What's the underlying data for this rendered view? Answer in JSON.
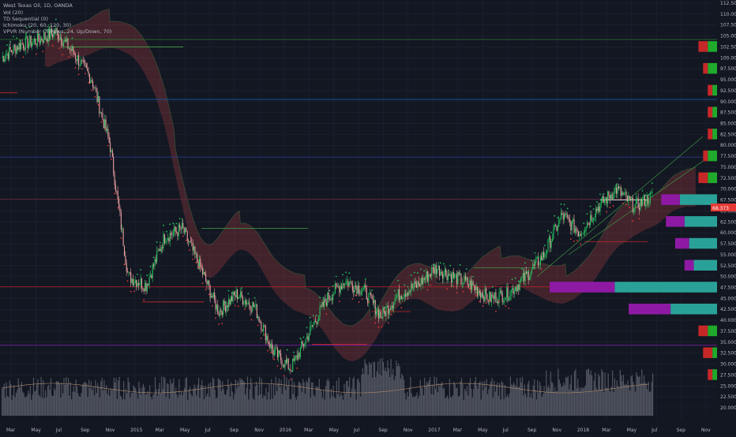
{
  "legend": {
    "title": "West Texas Oil, 1D, OANDA",
    "indicators": [
      "Vol (20)",
      "TD Sequential (0)",
      "Ichimoku (20, 60, 120, 30)",
      "VPVR (Number Of Rows, 24, Up/Down, 70)"
    ]
  },
  "colors": {
    "background": "#131722",
    "grid": "#1f2433",
    "up": "#26a69a",
    "down": "#ef5350",
    "candle_body": "#e8a0a0",
    "td_green": "#22c55e",
    "td_red": "#e53935",
    "volume": "#6b6f7a",
    "vpvr_up": "#2aa198",
    "vpvr_down": "#8e1aa3",
    "vpvr_upper_green": "#1faa2b",
    "vpvr_upper_red": "#c62828",
    "last_price_bg": "#e53935"
  },
  "price_axis": {
    "labels": [
      "112.500",
      "110.000",
      "107.500",
      "105.000",
      "102.500",
      "100.000",
      "97.500",
      "95.000",
      "92.500",
      "90.000",
      "87.500",
      "85.000",
      "82.500",
      "80.000",
      "77.500",
      "75.000",
      "72.500",
      "70.000",
      "67.500",
      "65.000",
      "62.500",
      "60.000",
      "57.500",
      "55.000",
      "52.500",
      "50.000",
      "47.500",
      "45.000",
      "42.500",
      "40.000",
      "37.500",
      "35.000",
      "32.500",
      "30.000",
      "27.500",
      "25.000",
      "22.500",
      "20.000"
    ],
    "last_price": "68.373"
  },
  "time_axis": {
    "labels": [
      "Mar",
      "May",
      "Jul",
      "Sep",
      "Nov",
      "2015",
      "Mar",
      "May",
      "Jul",
      "Sep",
      "Nov",
      "2016",
      "Mar",
      "May",
      "Jul",
      "Sep",
      "Nov",
      "2017",
      "Mar",
      "May",
      "Jul",
      "Sep",
      "Nov",
      "2018",
      "Mar",
      "May",
      "Jul",
      "Sep",
      "Nov"
    ]
  },
  "chart_data": {
    "type": "line",
    "title": "West Texas Oil, 1D, OANDA",
    "x": [
      "2014-02",
      "2014-03",
      "2014-05",
      "2014-07",
      "2014-08",
      "2014-09",
      "2014-11",
      "2015-01",
      "2015-03",
      "2015-05",
      "2015-06",
      "2015-07",
      "2015-08",
      "2015-09",
      "2015-11",
      "2016-01",
      "2016-02",
      "2016-03",
      "2016-05",
      "2016-06",
      "2016-07",
      "2016-08",
      "2016-09",
      "2016-11",
      "2017-01",
      "2017-03",
      "2017-05",
      "2017-06",
      "2017-07",
      "2017-09",
      "2017-11",
      "2018-01",
      "2018-03",
      "2018-04",
      "2018-05",
      "2018-06",
      "2018-07"
    ],
    "series": [
      {
        "values": [
          100,
          103,
          104,
          106,
          101,
          95,
          80,
          50,
          48,
          59,
          61,
          52,
          42,
          46,
          43,
          33,
          29,
          37,
          45,
          49,
          47,
          41,
          46,
          48,
          52,
          50,
          48,
          45,
          46,
          50,
          55,
          64,
          60,
          66,
          70,
          66,
          68.4
        ]
      }
    ],
    "ylim": [
      20,
      112.5
    ],
    "volume_profile": {
      "price_rows": [
        102.5,
        97.5,
        92.5,
        87.5,
        82.5,
        77.5,
        72.5,
        67.5,
        62.5,
        57.5,
        52.5,
        47.5,
        42.5,
        37.5,
        32.5,
        27.5
      ],
      "up": [
        2,
        2,
        1,
        1,
        1,
        2,
        2,
        8,
        7,
        6,
        5,
        22,
        10,
        2,
        1,
        1
      ],
      "down": [
        2,
        1,
        1,
        1,
        1,
        1,
        2,
        4,
        4,
        3,
        2,
        14,
        9,
        2,
        2,
        1
      ]
    }
  }
}
